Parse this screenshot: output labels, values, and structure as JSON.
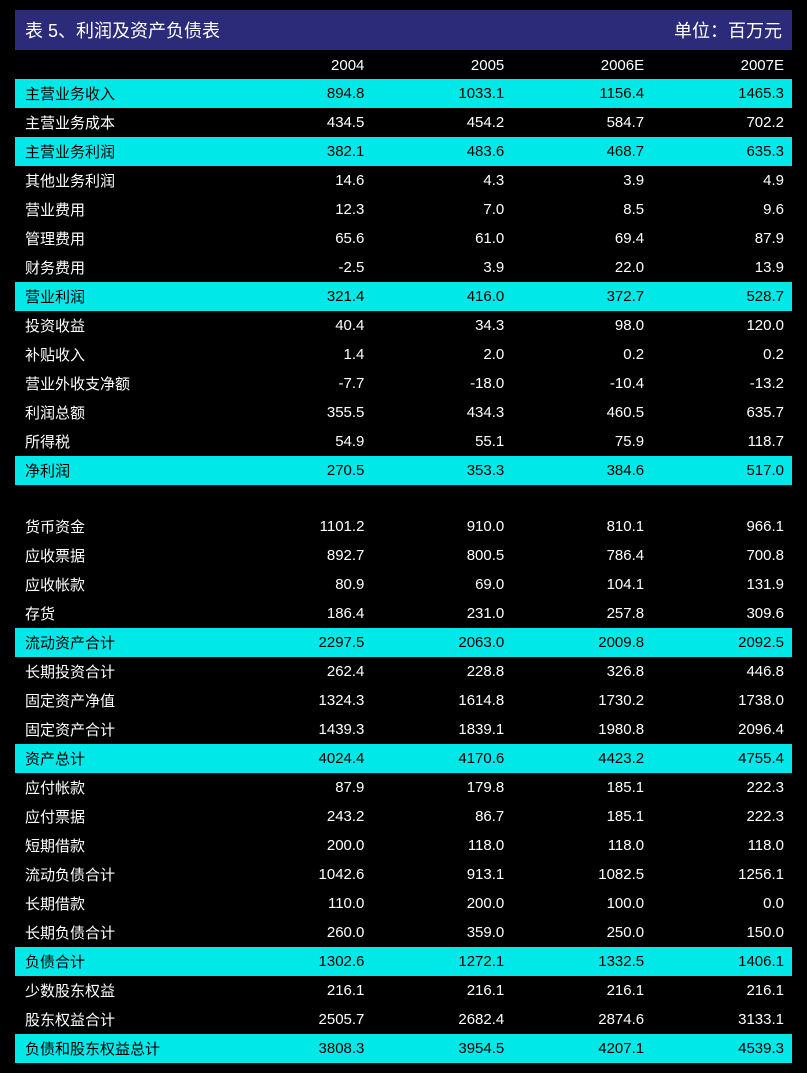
{
  "header": {
    "title": "表 5、利润及资产负债表",
    "unit": "单位：百万元"
  },
  "columns": [
    "2004",
    "2005",
    "2006E",
    "2007E"
  ],
  "rows": [
    {
      "label": "主营业务收入",
      "values": [
        "894.8",
        "1033.1",
        "1156.4",
        "1465.3"
      ],
      "highlight": true
    },
    {
      "label": "主营业务成本",
      "values": [
        "434.5",
        "454.2",
        "584.7",
        "702.2"
      ],
      "highlight": false
    },
    {
      "label": "主营业务利润",
      "values": [
        "382.1",
        "483.6",
        "468.7",
        "635.3"
      ],
      "highlight": true
    },
    {
      "label": "其他业务利润",
      "values": [
        "14.6",
        "4.3",
        "3.9",
        "4.9"
      ],
      "highlight": false
    },
    {
      "label": "营业费用",
      "values": [
        "12.3",
        "7.0",
        "8.5",
        "9.6"
      ],
      "highlight": false
    },
    {
      "label": "管理费用",
      "values": [
        "65.6",
        "61.0",
        "69.4",
        "87.9"
      ],
      "highlight": false
    },
    {
      "label": "财务费用",
      "values": [
        "-2.5",
        "3.9",
        "22.0",
        "13.9"
      ],
      "highlight": false
    },
    {
      "label": "营业利润",
      "values": [
        "321.4",
        "416.0",
        "372.7",
        "528.7"
      ],
      "highlight": true
    },
    {
      "label": "投资收益",
      "values": [
        "40.4",
        "34.3",
        "98.0",
        "120.0"
      ],
      "highlight": false
    },
    {
      "label": "补贴收入",
      "values": [
        "1.4",
        "2.0",
        "0.2",
        "0.2"
      ],
      "highlight": false
    },
    {
      "label": "营业外收支净额",
      "values": [
        "-7.7",
        "-18.0",
        "-10.4",
        "-13.2"
      ],
      "highlight": false
    },
    {
      "label": "利润总额",
      "values": [
        "355.5",
        "434.3",
        "460.5",
        "635.7"
      ],
      "highlight": false
    },
    {
      "label": "所得税",
      "values": [
        "54.9",
        "55.1",
        "75.9",
        "118.7"
      ],
      "highlight": false
    },
    {
      "label": "净利润",
      "values": [
        "270.5",
        "353.3",
        "384.6",
        "517.0"
      ],
      "highlight": true
    },
    {
      "label": "",
      "values": [
        "",
        "",
        "",
        ""
      ],
      "highlight": false
    },
    {
      "label": "货币资金",
      "values": [
        "1101.2",
        "910.0",
        "810.1",
        "966.1"
      ],
      "highlight": false
    },
    {
      "label": "应收票据",
      "values": [
        "892.7",
        "800.5",
        "786.4",
        "700.8"
      ],
      "highlight": false
    },
    {
      "label": "应收帐款",
      "values": [
        "80.9",
        "69.0",
        "104.1",
        "131.9"
      ],
      "highlight": false
    },
    {
      "label": "存货",
      "values": [
        "186.4",
        "231.0",
        "257.8",
        "309.6"
      ],
      "highlight": false
    },
    {
      "label": "流动资产合计",
      "values": [
        "2297.5",
        "2063.0",
        "2009.8",
        "2092.5"
      ],
      "highlight": true
    },
    {
      "label": "长期投资合计",
      "values": [
        "262.4",
        "228.8",
        "326.8",
        "446.8"
      ],
      "highlight": false
    },
    {
      "label": "固定资产净值",
      "values": [
        "1324.3",
        "1614.8",
        "1730.2",
        "1738.0"
      ],
      "highlight": false
    },
    {
      "label": "固定资产合计",
      "values": [
        "1439.3",
        "1839.1",
        "1980.8",
        "2096.4"
      ],
      "highlight": false
    },
    {
      "label": "资产总计",
      "values": [
        "4024.4",
        "4170.6",
        "4423.2",
        "4755.4"
      ],
      "highlight": true
    },
    {
      "label": "应付帐款",
      "values": [
        "87.9",
        "179.8",
        "185.1",
        "222.3"
      ],
      "highlight": false
    },
    {
      "label": "应付票据",
      "values": [
        "243.2",
        "86.7",
        "185.1",
        "222.3"
      ],
      "highlight": false
    },
    {
      "label": "短期借款",
      "values": [
        "200.0",
        "118.0",
        "118.0",
        "118.0"
      ],
      "highlight": false
    },
    {
      "label": "流动负债合计",
      "values": [
        "1042.6",
        "913.1",
        "1082.5",
        "1256.1"
      ],
      "highlight": false
    },
    {
      "label": "长期借款",
      "values": [
        "110.0",
        "200.0",
        "100.0",
        "0.0"
      ],
      "highlight": false
    },
    {
      "label": "长期负债合计",
      "values": [
        "260.0",
        "359.0",
        "250.0",
        "150.0"
      ],
      "highlight": false
    },
    {
      "label": "负债合计",
      "values": [
        "1302.6",
        "1272.1",
        "1332.5",
        "1406.1"
      ],
      "highlight": true
    },
    {
      "label": "少数股东权益",
      "values": [
        "216.1",
        "216.1",
        "216.1",
        "216.1"
      ],
      "highlight": false
    },
    {
      "label": "股东权益合计",
      "values": [
        "2505.7",
        "2682.4",
        "2874.6",
        "3133.1"
      ],
      "highlight": false
    },
    {
      "label": "负债和股东权益总计",
      "values": [
        "3808.3",
        "3954.5",
        "4207.1",
        "4539.3"
      ],
      "highlight": true
    }
  ]
}
